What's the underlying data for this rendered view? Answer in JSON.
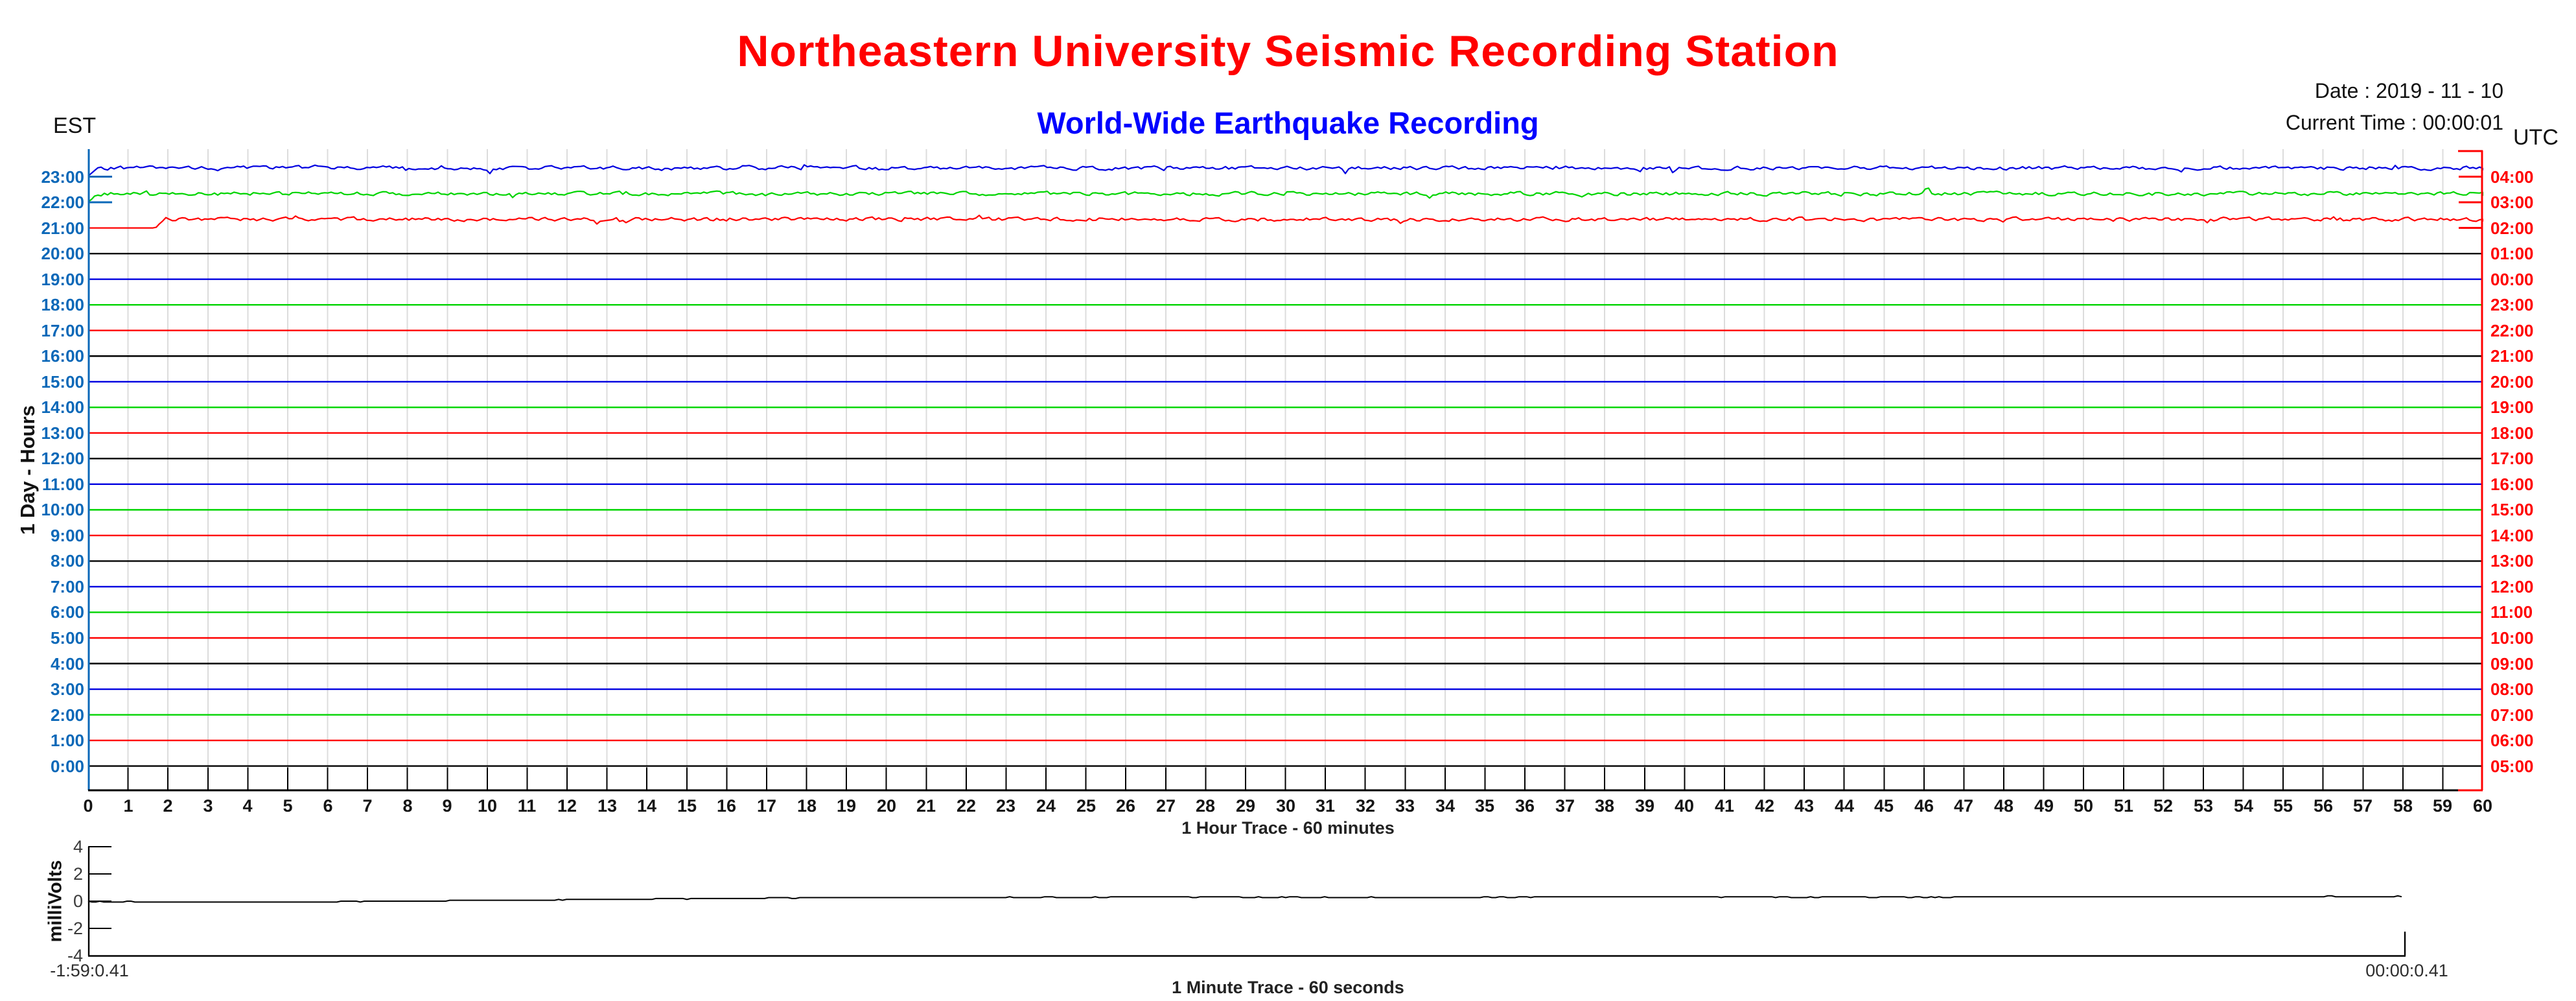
{
  "header": {
    "title": "Northeastern University Seismic Recording Station",
    "subtitle": "World-Wide Earthquake Recording",
    "date": "Date : 2019 - 11 - 10",
    "current_time": "Current Time : 00:00:01"
  },
  "colors": {
    "title": "#ff0000",
    "subtitle": "#0000ff",
    "est_labels": "#0b68b8",
    "utc_labels": "#ff0000",
    "left_axis": "#0b68b8",
    "right_axis": "#ff0000",
    "grid": "#dcdcdc",
    "minute_ticks": "#000000",
    "traces": {
      "blue": "#0000e0",
      "green": "#00d400",
      "red": "#ff0000",
      "black": "#000000"
    }
  },
  "chart_data": [
    {
      "id": "helicorder",
      "type": "line",
      "title": "World-Wide Earthquake Recording",
      "x_axis_caption": "1 Hour Trace - 60 minutes",
      "y_axis_title": "1 Day - Hours",
      "left_timezone": "EST",
      "right_timezone": "UTC",
      "x_range_minutes": [
        0,
        60
      ],
      "x_ticks": [
        0,
        1,
        2,
        3,
        4,
        5,
        6,
        7,
        8,
        9,
        10,
        11,
        12,
        13,
        14,
        15,
        16,
        17,
        18,
        19,
        20,
        21,
        22,
        23,
        24,
        25,
        26,
        27,
        28,
        29,
        30,
        31,
        32,
        33,
        34,
        35,
        36,
        37,
        38,
        39,
        40,
        41,
        42,
        43,
        44,
        45,
        46,
        47,
        48,
        49,
        50,
        51,
        52,
        53,
        54,
        55,
        56,
        57,
        58,
        59,
        60
      ],
      "grid": "vertical gridline each minute",
      "rows": [
        {
          "est": "23:00",
          "utc": "04:00",
          "color": "blue",
          "signal": "active",
          "signal_start_minute": 0
        },
        {
          "est": "22:00",
          "utc": "03:00",
          "color": "green",
          "signal": "active",
          "signal_start_minute": 0
        },
        {
          "est": "21:00",
          "utc": "02:00",
          "color": "red",
          "signal": "active",
          "signal_start_minute": 1.7
        },
        {
          "est": "20:00",
          "utc": "01:00",
          "color": "black",
          "signal": "flat"
        },
        {
          "est": "19:00",
          "utc": "00:00",
          "color": "blue",
          "signal": "flat"
        },
        {
          "est": "18:00",
          "utc": "23:00",
          "color": "green",
          "signal": "flat"
        },
        {
          "est": "17:00",
          "utc": "22:00",
          "color": "red",
          "signal": "flat"
        },
        {
          "est": "16:00",
          "utc": "21:00",
          "color": "black",
          "signal": "flat"
        },
        {
          "est": "15:00",
          "utc": "20:00",
          "color": "blue",
          "signal": "flat"
        },
        {
          "est": "14:00",
          "utc": "19:00",
          "color": "green",
          "signal": "flat"
        },
        {
          "est": "13:00",
          "utc": "18:00",
          "color": "red",
          "signal": "flat"
        },
        {
          "est": "12:00",
          "utc": "17:00",
          "color": "black",
          "signal": "flat"
        },
        {
          "est": "11:00",
          "utc": "16:00",
          "color": "blue",
          "signal": "flat"
        },
        {
          "est": "10:00",
          "utc": "15:00",
          "color": "green",
          "signal": "flat"
        },
        {
          "est": "9:00",
          "utc": "14:00",
          "color": "red",
          "signal": "flat"
        },
        {
          "est": "8:00",
          "utc": "13:00",
          "color": "black",
          "signal": "flat"
        },
        {
          "est": "7:00",
          "utc": "12:00",
          "color": "blue",
          "signal": "flat"
        },
        {
          "est": "6:00",
          "utc": "11:00",
          "color": "green",
          "signal": "flat"
        },
        {
          "est": "5:00",
          "utc": "10:00",
          "color": "red",
          "signal": "flat"
        },
        {
          "est": "4:00",
          "utc": "09:00",
          "color": "black",
          "signal": "flat"
        },
        {
          "est": "3:00",
          "utc": "08:00",
          "color": "blue",
          "signal": "flat"
        },
        {
          "est": "2:00",
          "utc": "07:00",
          "color": "green",
          "signal": "flat"
        },
        {
          "est": "1:00",
          "utc": "06:00",
          "color": "red",
          "signal": "flat"
        },
        {
          "est": "0:00",
          "utc": "05:00",
          "color": "black",
          "signal": "flat"
        }
      ]
    },
    {
      "id": "minute_trace",
      "type": "line",
      "x_axis_caption": "1 Minute Trace  - 60 seconds",
      "y_axis_title": "milliVolts",
      "ylim": [
        -4,
        4
      ],
      "y_ticks": [
        4,
        2,
        0,
        -2,
        -4
      ],
      "start_time_label": "-1:59:0.41",
      "end_time_label": "00:00:0.41",
      "trace_points_s_mV": [
        [
          0,
          -0.02
        ],
        [
          3,
          -0.07
        ],
        [
          6,
          -0.05
        ],
        [
          10,
          0.04
        ],
        [
          14,
          0.14
        ],
        [
          18,
          0.23
        ],
        [
          22,
          0.28
        ],
        [
          28,
          0.3
        ],
        [
          34,
          0.28
        ],
        [
          40,
          0.31
        ],
        [
          46,
          0.29
        ],
        [
          52,
          0.32
        ],
        [
          57,
          0.33
        ],
        [
          60,
          0.35
        ]
      ]
    }
  ]
}
